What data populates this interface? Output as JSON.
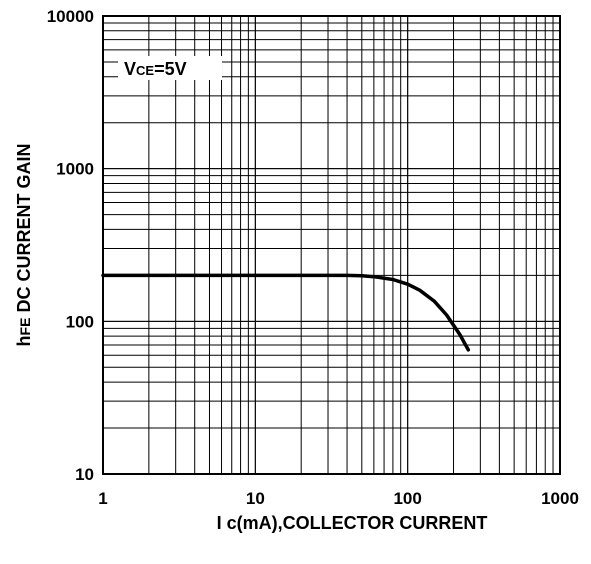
{
  "chart_data": {
    "type": "line",
    "x_scale": "log",
    "y_scale": "log",
    "xlim": [
      1,
      1000
    ],
    "ylim": [
      10,
      10000
    ],
    "grid": true,
    "xlabel": "I c(mA),COLLECTOR CURRENT",
    "ylabel_prefix": "h",
    "ylabel_sub": "FE",
    "ylabel_rest": " DC CURRENT GAIN",
    "xticks": [
      "1",
      "10",
      "100",
      "1000"
    ],
    "yticks": [
      "10",
      "100",
      "1000",
      "10000"
    ],
    "annotation": {
      "main": "V",
      "sub": "CE",
      "rest": "=5V"
    },
    "series": [
      {
        "x": [
          1,
          2,
          5,
          10,
          20,
          40,
          50,
          60,
          80,
          100,
          120,
          150,
          180,
          220,
          250
        ],
        "y": [
          200,
          200,
          200,
          200,
          200,
          200,
          199,
          196,
          188,
          175,
          160,
          135,
          110,
          82,
          65
        ]
      }
    ]
  }
}
